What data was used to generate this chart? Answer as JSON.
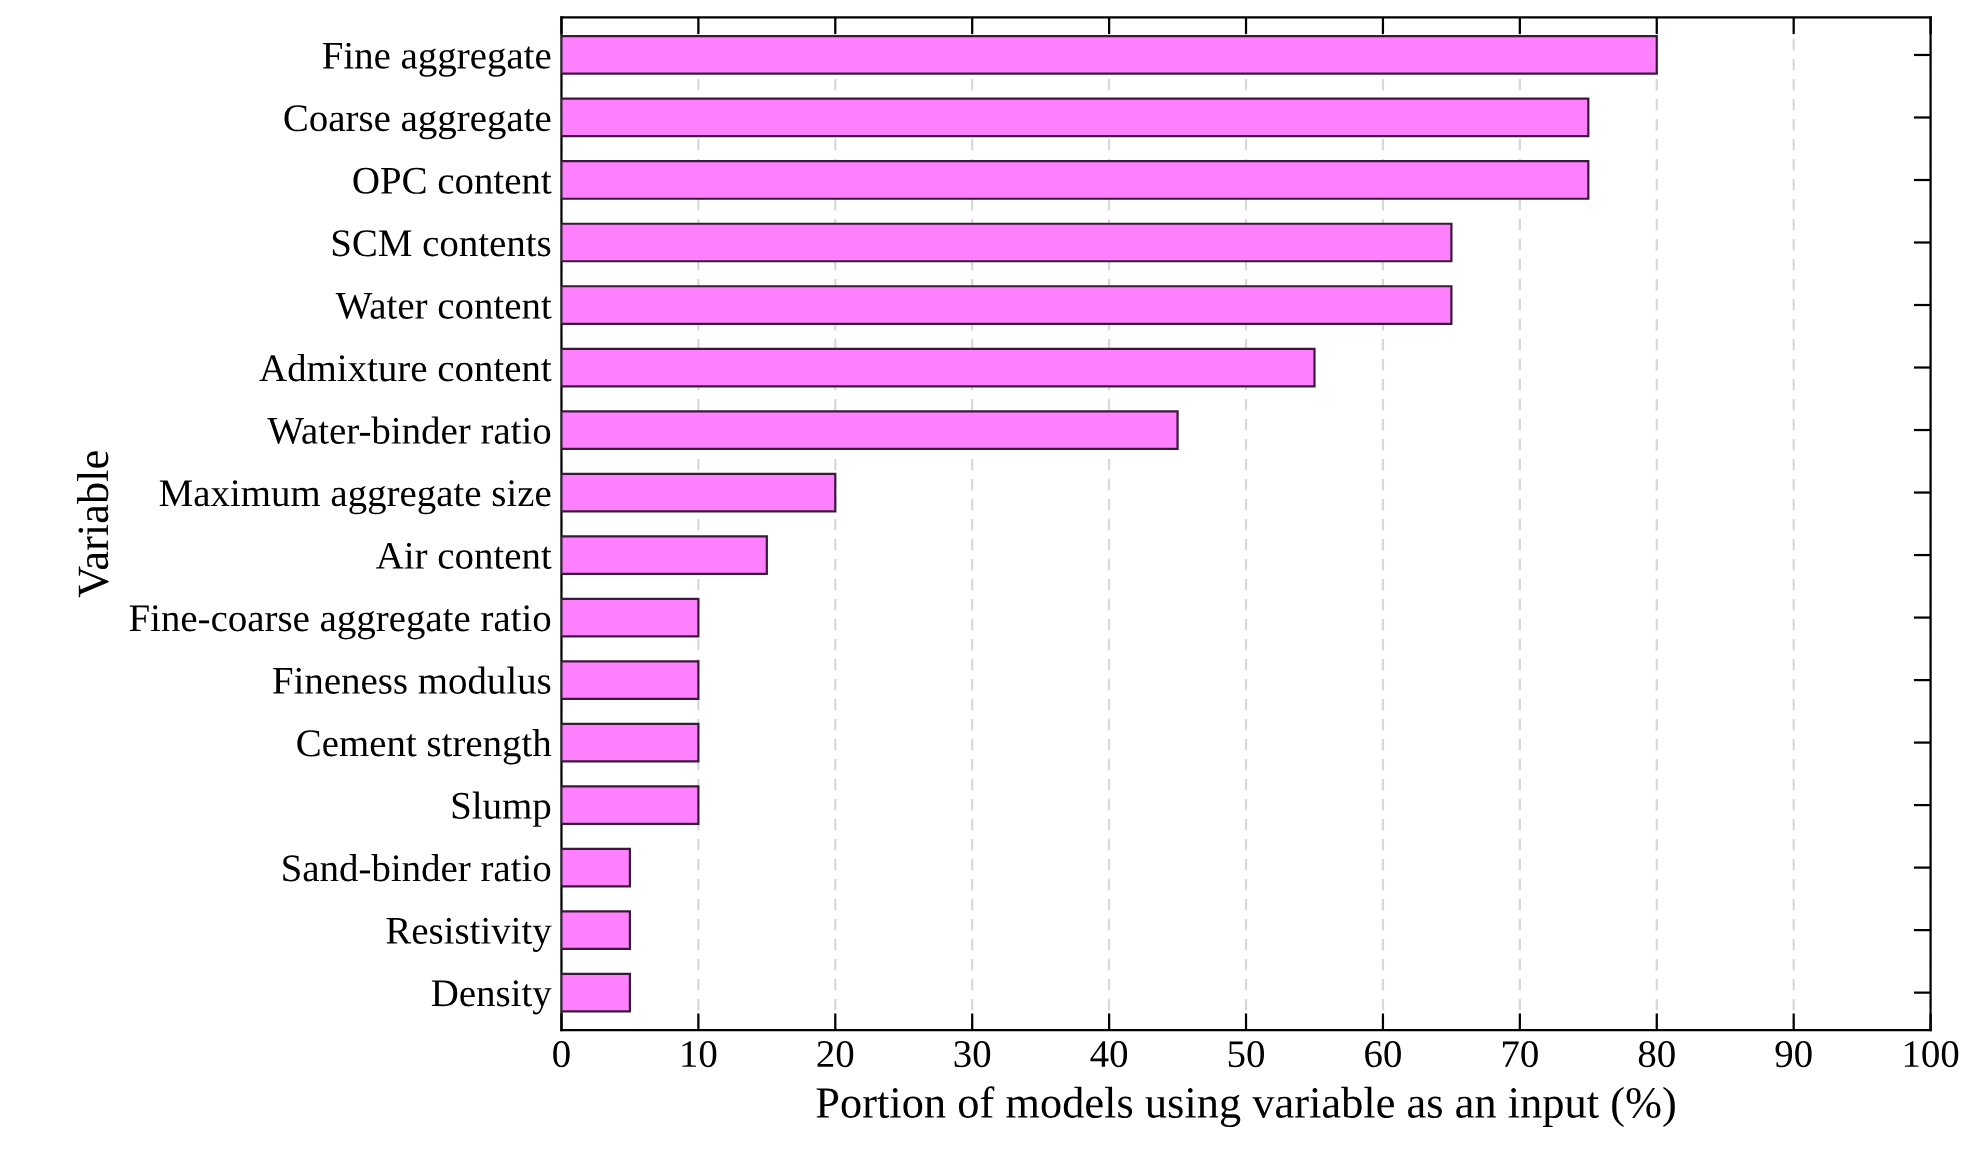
{
  "chart_data": {
    "type": "bar",
    "orientation": "horizontal",
    "xlabel": "Portion of models using variable as an input (%)",
    "ylabel": "Variable",
    "categories": [
      "Fine aggregate",
      "Coarse aggregate",
      "OPC content",
      "SCM contents",
      "Water content",
      "Admixture content",
      "Water-binder ratio",
      "Maximum aggregate size",
      "Air content",
      "Fine-coarse aggregate ratio",
      "Fineness modulus",
      "Cement strength",
      "Slump",
      "Sand-binder ratio",
      "Resistivity",
      "Density"
    ],
    "values": [
      80,
      75,
      75,
      65,
      65,
      55,
      45,
      20,
      15,
      10,
      10,
      10,
      10,
      5,
      5,
      5
    ],
    "color": "#ff80ff",
    "xlim": [
      0,
      100
    ],
    "xticks": [
      0,
      10,
      20,
      30,
      40,
      50,
      60,
      70,
      80,
      90,
      100
    ],
    "grid": "x"
  }
}
